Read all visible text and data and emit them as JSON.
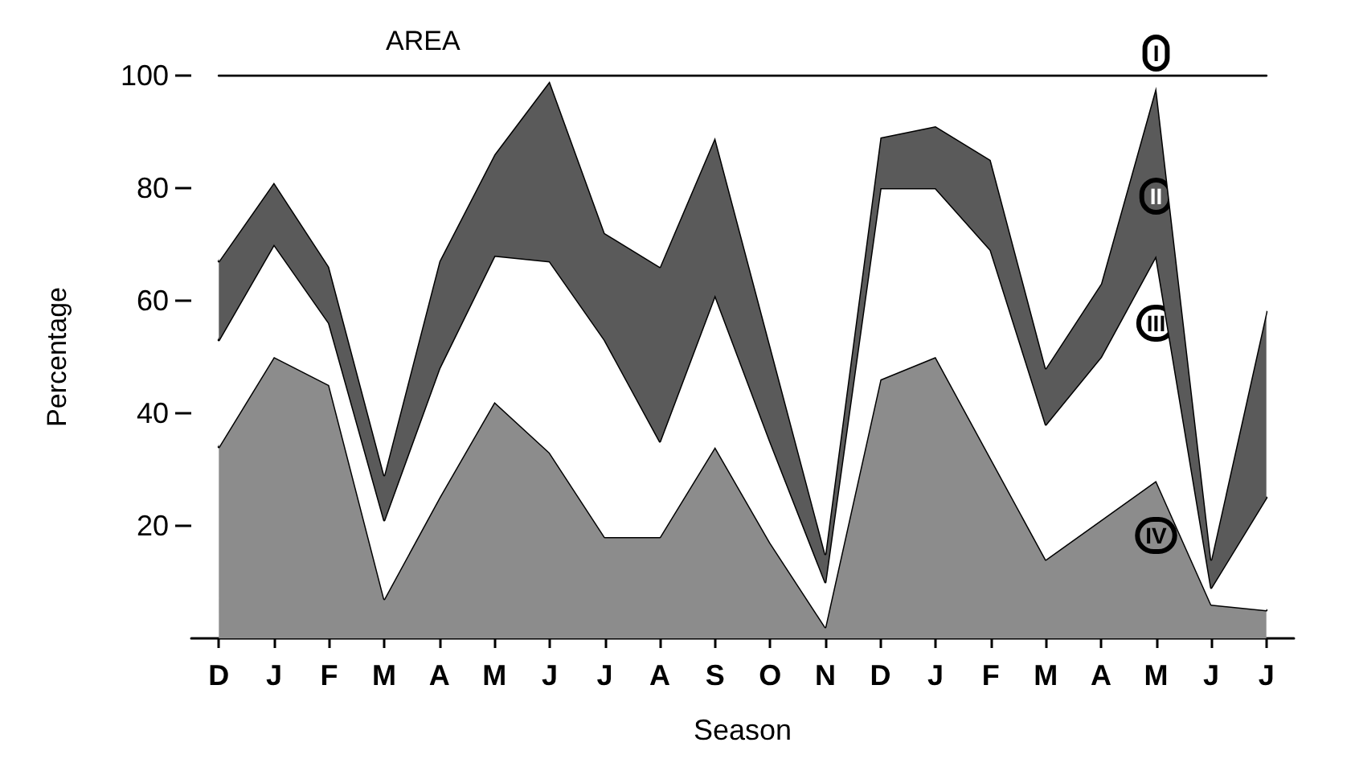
{
  "chart_data": {
    "type": "area",
    "title": "AREA",
    "xlabel": "Season",
    "ylabel": "Percentage",
    "categories": [
      "D",
      "J",
      "F",
      "M",
      "A",
      "M",
      "J",
      "J",
      "A",
      "S",
      "O",
      "N",
      "D",
      "J",
      "F",
      "M",
      "A",
      "M",
      "J",
      "J"
    ],
    "stacked": true,
    "series": [
      {
        "name": "IV",
        "color": "#8c8c8c",
        "values": [
          34,
          50,
          45,
          7,
          25,
          42,
          33,
          18,
          18,
          34,
          17,
          2,
          46,
          50,
          32,
          14,
          21,
          28,
          6,
          5
        ]
      },
      {
        "name": "III",
        "color": "#ffffff",
        "values": [
          19,
          20,
          11,
          14,
          23,
          26,
          34,
          35,
          17,
          27,
          18,
          8,
          34,
          30,
          37,
          24,
          29,
          40,
          3,
          20
        ]
      },
      {
        "name": "II",
        "color": "#5a5a5a",
        "values": [
          14,
          11,
          10,
          8,
          19,
          18,
          32,
          19,
          31,
          28,
          17,
          5,
          9,
          11,
          16,
          10,
          13,
          30,
          5,
          33
        ]
      },
      {
        "name": "I",
        "color": "#ffffff",
        "values": [
          33,
          19,
          34,
          71,
          33,
          14,
          1,
          28,
          34,
          11,
          48,
          85,
          11,
          9,
          15,
          52,
          37,
          2,
          86,
          42
        ]
      }
    ],
    "ylim": [
      0,
      100
    ],
    "yticks": [
      20,
      40,
      60,
      80,
      100
    ],
    "grid": false,
    "legend": false,
    "marker": "none",
    "line_style": "solid"
  }
}
